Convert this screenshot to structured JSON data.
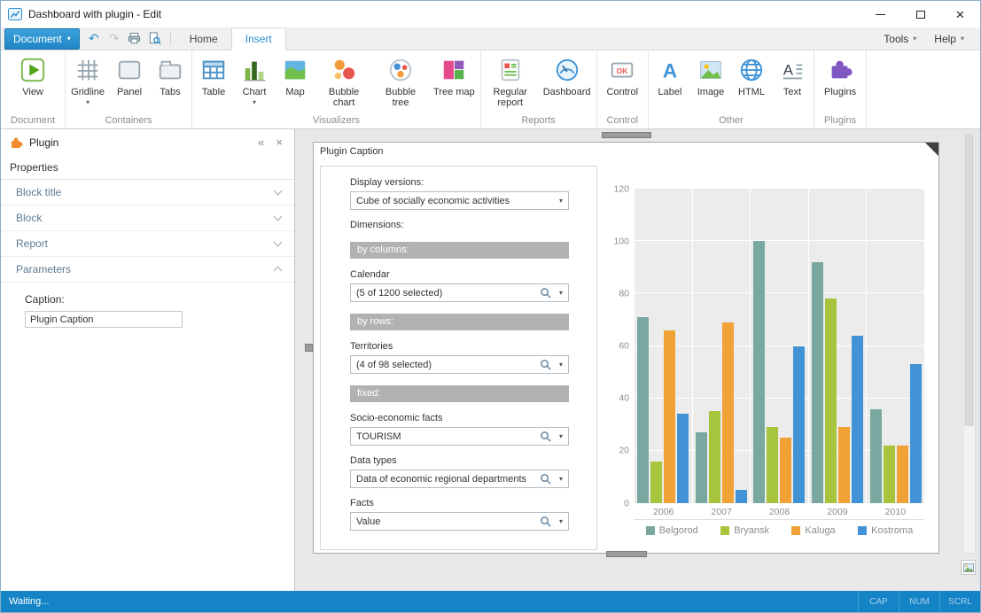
{
  "window": {
    "title": "Dashboard with plugin - Edit"
  },
  "ribbon": {
    "document_button": {
      "label": "Document"
    },
    "quick_access": [
      {
        "name": "undo-button",
        "icon": "undo-icon",
        "enabled": true
      },
      {
        "name": "redo-button",
        "icon": "redo-icon",
        "enabled": false
      },
      {
        "name": "print-button",
        "icon": "print-icon",
        "enabled": true
      },
      {
        "name": "print-preview-button",
        "icon": "print-preview-icon",
        "enabled": true
      }
    ],
    "tabs": [
      {
        "label": "Home",
        "active": false
      },
      {
        "label": "Insert",
        "active": true
      }
    ],
    "menus": [
      {
        "label": "Tools"
      },
      {
        "label": "Help"
      }
    ],
    "groups": [
      {
        "label": "Document",
        "buttons": [
          {
            "label": "View",
            "icon": "view-icon"
          }
        ]
      },
      {
        "label": "Containers",
        "buttons": [
          {
            "label": "Gridline",
            "icon": "gridline-icon",
            "dropdown": true
          },
          {
            "label": "Panel",
            "icon": "panel-icon"
          },
          {
            "label": "Tabs",
            "icon": "tabs-icon"
          }
        ]
      },
      {
        "label": "Visualizers",
        "buttons": [
          {
            "label": "Table",
            "icon": "table-icon"
          },
          {
            "label": "Chart",
            "icon": "chart-icon",
            "dropdown": true
          },
          {
            "label": "Map",
            "icon": "map-icon"
          },
          {
            "label": "Bubble chart",
            "icon": "bubble-chart-icon"
          },
          {
            "label": "Bubble tree",
            "icon": "bubble-tree-icon"
          },
          {
            "label": "Tree map",
            "icon": "tree-map-icon"
          }
        ]
      },
      {
        "label": "Reports",
        "buttons": [
          {
            "label": "Regular report",
            "icon": "regular-report-icon"
          },
          {
            "label": "Dashboard",
            "icon": "dashboard-icon"
          }
        ]
      },
      {
        "label": "Control",
        "buttons": [
          {
            "label": "Control",
            "icon": "control-icon"
          }
        ]
      },
      {
        "label": "Other",
        "buttons": [
          {
            "label": "Label",
            "icon": "label-icon"
          },
          {
            "label": "Image",
            "icon": "image-icon"
          },
          {
            "label": "HTML",
            "icon": "html-icon"
          },
          {
            "label": "Text",
            "icon": "text-icon"
          }
        ]
      },
      {
        "label": "Plugins",
        "buttons": [
          {
            "label": "Plugins",
            "icon": "plugins-icon"
          }
        ]
      }
    ]
  },
  "sidebar": {
    "title": "Plugin",
    "section_title": "Properties",
    "items": [
      {
        "label": "Block title",
        "expanded": false
      },
      {
        "label": "Block",
        "expanded": false
      },
      {
        "label": "Report",
        "expanded": false
      },
      {
        "label": "Parameters",
        "expanded": true
      }
    ],
    "parameters": {
      "caption_label": "Caption:",
      "caption_value": "Plugin Caption"
    }
  },
  "plugin_block": {
    "caption": "Plugin Caption",
    "form_fields": [
      {
        "type": "label",
        "text": "Display versions:"
      },
      {
        "type": "select",
        "value": "Cube of socially economic activities",
        "search": false
      },
      {
        "type": "label",
        "text": "Dimensions:"
      },
      {
        "type": "band",
        "text": "by columns:"
      },
      {
        "type": "label",
        "text": "Calendar"
      },
      {
        "type": "select",
        "value": "(5 of 1200 selected)",
        "search": true
      },
      {
        "type": "band",
        "text": "by rows:"
      },
      {
        "type": "label",
        "text": "Territories"
      },
      {
        "type": "select",
        "value": "(4 of 98 selected)",
        "search": true
      },
      {
        "type": "band",
        "text": "fixed:"
      },
      {
        "type": "label",
        "text": "Socio-economic facts"
      },
      {
        "type": "select",
        "value": "TOURISM",
        "search": true
      },
      {
        "type": "label",
        "text": "Data types"
      },
      {
        "type": "select",
        "value": "Data of economic regional departments",
        "search": true
      },
      {
        "type": "label",
        "text": "Facts"
      },
      {
        "type": "select",
        "value": "Value",
        "search": true
      }
    ]
  },
  "chart_data": {
    "type": "bar",
    "categories": [
      "2006",
      "2007",
      "2008",
      "2009",
      "2010"
    ],
    "series": [
      {
        "name": "Belgorod",
        "color": "#79a8a0",
        "values": [
          71,
          27,
          100,
          92,
          36
        ]
      },
      {
        "name": "Bryansk",
        "color": "#a6c53d",
        "values": [
          16,
          35,
          29,
          78,
          22
        ]
      },
      {
        "name": "Kaluga",
        "color": "#f0a236",
        "values": [
          66,
          69,
          25,
          29,
          22
        ]
      },
      {
        "name": "Kostroma",
        "color": "#4193d5",
        "values": [
          34,
          5,
          60,
          64,
          53
        ]
      }
    ],
    "ylim": [
      0,
      120
    ],
    "yticks": [
      0,
      20,
      40,
      60,
      80,
      100,
      120
    ],
    "grid": true,
    "legend_position": "bottom",
    "title": "",
    "xlabel": "",
    "ylabel": ""
  },
  "statusbar": {
    "message": "Waiting...",
    "indicators": [
      "CAP",
      "NUM",
      "SCRL"
    ]
  }
}
